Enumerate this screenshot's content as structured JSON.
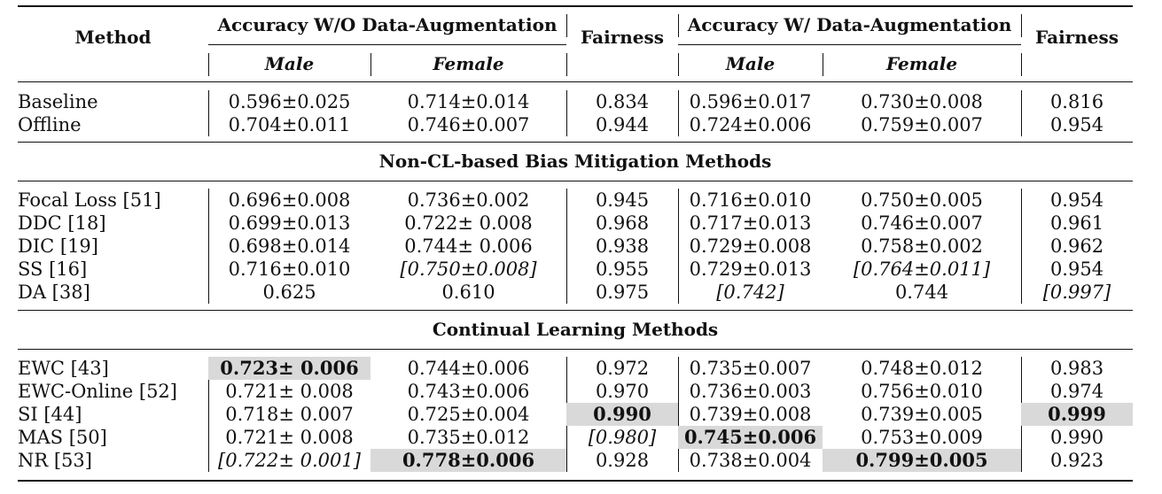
{
  "header": {
    "method": "Method",
    "group1": "Accuracy W/O Data-Augmentation",
    "group2": "Accuracy W/ Data-Augmentation",
    "fairness1": "Fairness",
    "fairness2": "Fairness",
    "male1": "Male",
    "female1": "Female",
    "male2": "Male",
    "female2": "Female"
  },
  "sections": {
    "non_cl": "Non-CL-based Bias Mitigation Methods",
    "cl": "Continual Learning Methods"
  },
  "rows": [
    {
      "method": "Baseline",
      "m1": "0.596±0.025",
      "f1": "0.714±0.014",
      "fair1": "0.834",
      "m2": "0.596±0.017",
      "f2": "0.730±0.008",
      "fair2": "0.816"
    },
    {
      "method": "Offline",
      "m1": "0.704±0.011",
      "f1": "0.746±0.007",
      "fair1": "0.944",
      "m2": "0.724±0.006",
      "f2": "0.759±0.007",
      "fair2": "0.954"
    },
    {
      "method": "Focal Loss [51]",
      "m1": "0.696±0.008",
      "f1": "0.736±0.002",
      "fair1": "0.945",
      "m2": "0.716±0.010",
      "f2": "0.750±0.005",
      "fair2": "0.954"
    },
    {
      "method": "DDC [18]",
      "m1": "0.699±0.013",
      "f1": "0.722± 0.008",
      "fair1": "0.968",
      "m2": "0.717±0.013",
      "f2": "0.746±0.007",
      "fair2": "0.961"
    },
    {
      "method": "DIC [19]",
      "m1": "0.698±0.014",
      "f1": "0.744± 0.006",
      "fair1": "0.938",
      "m2": "0.729±0.008",
      "f2": "0.758±0.002",
      "fair2": "0.962"
    },
    {
      "method": "SS [16]",
      "m1": "0.716±0.010",
      "f1": "[0.750±0.008]",
      "fair1": "0.955",
      "m2": "0.729±0.013",
      "f2": "[0.764±0.011]",
      "fair2": "0.954"
    },
    {
      "method": "DA [38]",
      "m1": "0.625",
      "f1": "0.610",
      "fair1": "0.975",
      "m2": "[0.742]",
      "f2": "0.744",
      "fair2": "[0.997]"
    },
    {
      "method": "EWC [43]",
      "m1": "0.723± 0.006",
      "f1": "0.744±0.006",
      "fair1": "0.972",
      "m2": "0.735±0.007",
      "f2": "0.748±0.012",
      "fair2": "0.983"
    },
    {
      "method": "EWC-Online [52]",
      "m1": "0.721± 0.008",
      "f1": "0.743±0.006",
      "fair1": "0.970",
      "m2": "0.736±0.003",
      "f2": "0.756±0.010",
      "fair2": "0.974"
    },
    {
      "method": "SI [44]",
      "m1": "0.718± 0.007",
      "f1": "0.725±0.004",
      "fair1": "0.990",
      "m2": "0.739±0.008",
      "f2": "0.739±0.005",
      "fair2": "0.999"
    },
    {
      "method": "MAS [50]",
      "m1": "0.721± 0.008",
      "f1": "0.735±0.012",
      "fair1": "[0.980]",
      "m2": "0.745±0.006",
      "f2": "0.753±0.009",
      "fair2": "0.990"
    },
    {
      "method": "NR [53]",
      "m1": "[0.722± 0.001]",
      "f1": "0.778±0.006",
      "fair1": "0.928",
      "m2": "0.738±0.004",
      "f2": "0.799±0.005",
      "fair2": "0.923"
    }
  ]
}
